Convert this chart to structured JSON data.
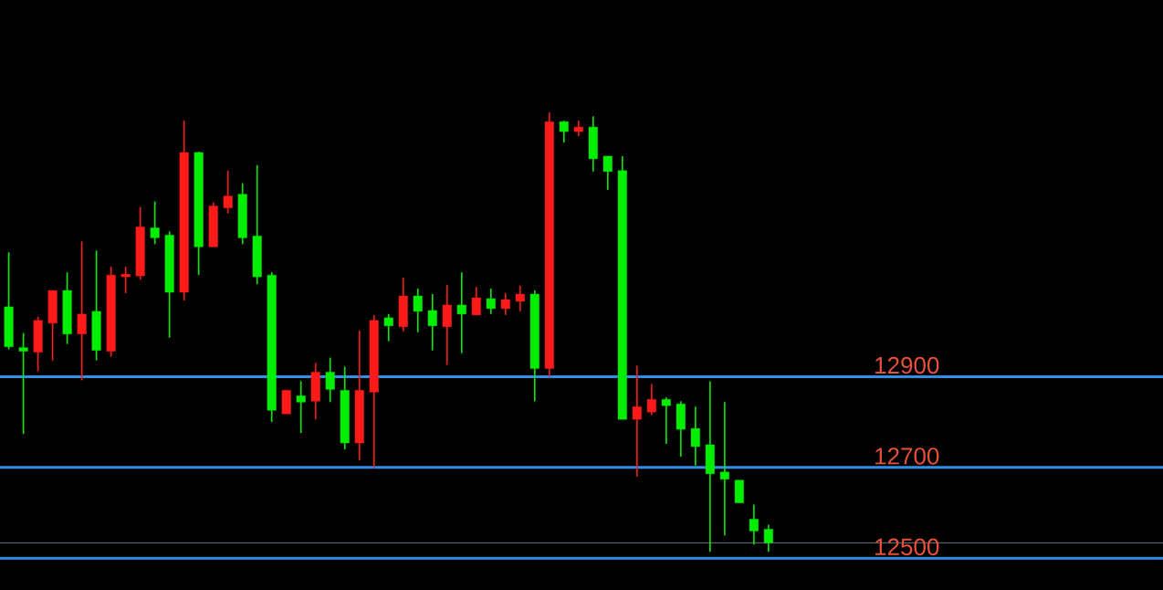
{
  "chart_data": {
    "type": "candlestick",
    "categories": [
      null,
      null,
      null,
      null,
      null,
      null,
      null,
      null,
      null,
      null,
      null,
      null,
      null,
      null,
      null,
      null,
      null,
      null,
      null,
      null,
      null,
      null,
      null,
      null,
      null,
      null,
      null,
      null,
      null,
      null,
      null,
      null,
      null,
      null,
      null,
      null,
      null,
      null,
      null,
      null,
      null,
      null,
      null,
      null,
      null,
      null,
      null,
      null,
      null,
      null,
      null,
      null,
      null
    ],
    "ylim": [
      12430,
      13730
    ],
    "ohlc": [
      [
        13054,
        13174,
        12960,
        12966
      ],
      [
        12964,
        12996,
        12774,
        12956
      ],
      [
        12954,
        13032,
        12912,
        13024
      ],
      [
        13018,
        13090,
        12936,
        13090
      ],
      [
        13090,
        13130,
        12972,
        12994
      ],
      [
        12994,
        13198,
        12892,
        13038
      ],
      [
        13044,
        13178,
        12936,
        12958
      ],
      [
        12956,
        13142,
        12944,
        13124
      ],
      [
        13120,
        13142,
        13084,
        13126
      ],
      [
        13122,
        13274,
        13114,
        13230
      ],
      [
        13228,
        13286,
        13192,
        13206
      ],
      [
        13212,
        13220,
        12986,
        13086
      ],
      [
        13086,
        13464,
        13068,
        13394
      ],
      [
        13394,
        13396,
        13124,
        13186
      ],
      [
        13186,
        13284,
        13186,
        13276
      ],
      [
        13272,
        13354,
        13260,
        13298
      ],
      [
        13302,
        13326,
        13192,
        13206
      ],
      [
        13210,
        13366,
        13104,
        13120
      ],
      [
        13124,
        13130,
        12800,
        12826
      ],
      [
        12818,
        12870,
        12818,
        12870
      ],
      [
        12858,
        12890,
        12776,
        12844
      ],
      [
        12846,
        12930,
        12806,
        12910
      ],
      [
        12910,
        12942,
        12844,
        12872
      ],
      [
        12870,
        12922,
        12740,
        12754
      ],
      [
        12754,
        13002,
        12716,
        12870
      ],
      [
        12866,
        13036,
        12698,
        13024
      ],
      [
        13030,
        13038,
        12978,
        13012
      ],
      [
        13010,
        13118,
        13000,
        13078
      ],
      [
        13078,
        13094,
        12998,
        13044
      ],
      [
        13046,
        13082,
        12958,
        13012
      ],
      [
        13010,
        13102,
        12926,
        13058
      ],
      [
        13058,
        13130,
        12952,
        13038
      ],
      [
        13036,
        13098,
        13036,
        13074
      ],
      [
        13072,
        13094,
        13038,
        13050
      ],
      [
        13050,
        13084,
        13036,
        13070
      ],
      [
        13066,
        13100,
        13044,
        13082
      ],
      [
        13082,
        13090,
        12846,
        12918
      ],
      [
        12918,
        13482,
        12900,
        13462
      ],
      [
        13462,
        13464,
        13416,
        13440
      ],
      [
        13440,
        13464,
        13430,
        13450
      ],
      [
        13450,
        13474,
        13352,
        13380
      ],
      [
        13386,
        13386,
        13312,
        13352
      ],
      [
        13354,
        13386,
        12806,
        12806
      ],
      [
        12806,
        12924,
        12680,
        12834
      ],
      [
        12822,
        12884,
        12816,
        12850
      ],
      [
        12850,
        12854,
        12752,
        12836
      ],
      [
        12840,
        12846,
        12724,
        12784
      ],
      [
        12786,
        12834,
        12704,
        12746
      ],
      [
        12750,
        12890,
        12514,
        12686
      ],
      [
        12690,
        12844,
        12550,
        12674
      ],
      [
        12672,
        12672,
        12622,
        12622
      ],
      [
        12586,
        12618,
        12530,
        12560
      ],
      [
        12564,
        12574,
        12514,
        12534
      ]
    ],
    "colors": [
      "#00ee00",
      "#00ee00",
      "#ff1a1a",
      "#ff1a1a",
      "#00ee00",
      "#ff1a1a",
      "#00ee00",
      "#ff1a1a",
      "#ff1a1a",
      "#ff1a1a",
      "#00ee00",
      "#00ee00",
      "#ff1a1a",
      "#00ee00",
      "#ff1a1a",
      "#ff1a1a",
      "#00ee00",
      "#00ee00",
      "#00ee00",
      "#ff1a1a",
      "#00ee00",
      "#ff1a1a",
      "#00ee00",
      "#00ee00",
      "#ff1a1a",
      "#ff1a1a",
      "#00ee00",
      "#ff1a1a",
      "#00ee00",
      "#00ee00",
      "#ff1a1a",
      "#00ee00",
      "#ff1a1a",
      "#00ee00",
      "#ff1a1a",
      "#ff1a1a",
      "#00ee00",
      "#ff1a1a",
      "#00ee00",
      "#ff1a1a",
      "#00ee00",
      "#00ee00",
      "#00ee00",
      "#ff1a1a",
      "#ff1a1a",
      "#00ee00",
      "#00ee00",
      "#00ee00",
      "#00ee00",
      "#00ee00",
      "#00ee00",
      "#00ee00",
      "#00ee00"
    ],
    "ref_lines": [
      {
        "axis": "y",
        "value": 12900,
        "label": "12900",
        "color": "#2f8fe6"
      },
      {
        "axis": "y",
        "value": 12700,
        "label": "12700",
        "color": "#2f8fe6"
      },
      {
        "axis": "y",
        "value": 12500,
        "label": "12500",
        "color": "#2f8fe6"
      },
      {
        "axis": "y",
        "value": 12534,
        "label": null,
        "color": "#8c9fb0"
      }
    ]
  }
}
